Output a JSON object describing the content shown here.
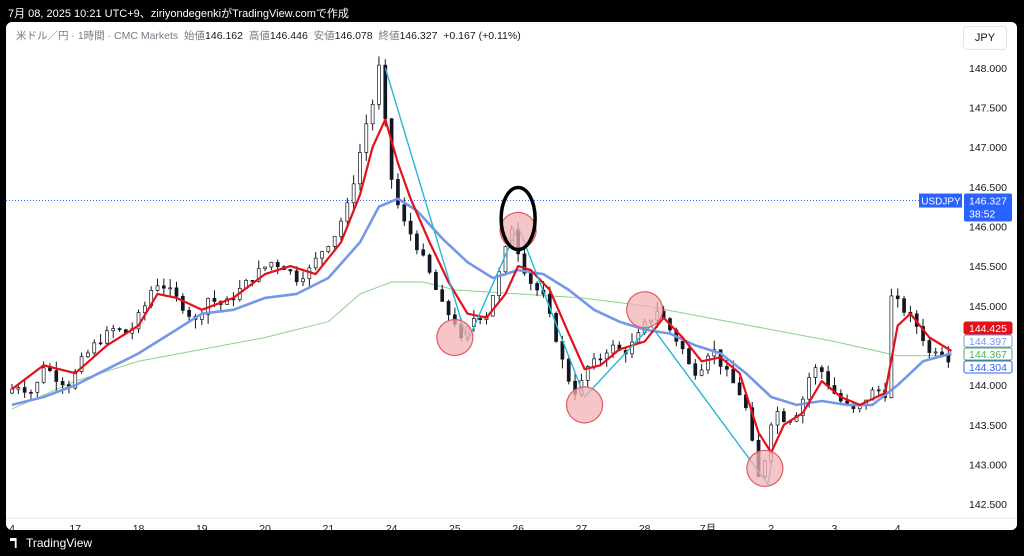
{
  "caption": "7月 08, 2025 10:21 UTC+9、ziriyondegenkiがTradingView.comで作成",
  "legend": {
    "symbol": "米ドル／円 · 1時間 · CMC Markets",
    "open_label": "始値",
    "open": "146.162",
    "high_label": "高値",
    "high": "146.446",
    "low_label": "安値",
    "low": "146.078",
    "close_label": "終値",
    "close": "146.327",
    "change": "+0.167 (+0.11%)"
  },
  "currency_button": "JPY",
  "footer_brand": "TradingView",
  "colors": {
    "up": "#089981",
    "down": "#131722",
    "candle": "#131722",
    "ma_fast": "#e4101a",
    "ma_mid": "#7597e8",
    "ma_slow": "#8fd08f",
    "zigzag": "#29b6d4",
    "circle_fill": "#f3b1b5",
    "circle_stroke": "#e05a63",
    "highlight_ring": "#000000",
    "price_line": "#2962ff"
  },
  "chart_data": {
    "type": "candlestick",
    "symbol": "USDJPY",
    "ylim": [
      142.4,
      148.2
    ],
    "y_ticks": [
      "148.000",
      "147.500",
      "147.000",
      "146.500",
      "146.000",
      "145.500",
      "145.000",
      "144.500",
      "144.000",
      "143.500",
      "143.000",
      "142.500"
    ],
    "x_ticks": [
      {
        "label": "4",
        "t": 0
      },
      {
        "label": "17",
        "t": 1
      },
      {
        "label": "18",
        "t": 2
      },
      {
        "label": "19",
        "t": 3
      },
      {
        "label": "20",
        "t": 4
      },
      {
        "label": "21",
        "t": 5
      },
      {
        "label": "24",
        "t": 6
      },
      {
        "label": "25",
        "t": 7
      },
      {
        "label": "26",
        "t": 8
      },
      {
        "label": "27",
        "t": 9
      },
      {
        "label": "28",
        "t": 10
      },
      {
        "label": "7月",
        "t": 11
      },
      {
        "label": "2",
        "t": 12
      },
      {
        "label": "3",
        "t": 13
      },
      {
        "label": "4",
        "t": 14
      }
    ],
    "close_path": [
      [
        0,
        143.9
      ],
      [
        0.2,
        144.0
      ],
      [
        0.45,
        143.9
      ],
      [
        0.6,
        144.25
      ],
      [
        0.8,
        144.1
      ],
      [
        1.0,
        144.0
      ],
      [
        1.2,
        144.3
      ],
      [
        1.45,
        144.55
      ],
      [
        1.7,
        144.7
      ],
      [
        1.95,
        144.65
      ],
      [
        2.2,
        145.0
      ],
      [
        2.35,
        145.3
      ],
      [
        2.5,
        145.25
      ],
      [
        2.75,
        145.05
      ],
      [
        3.0,
        144.8
      ],
      [
        3.2,
        145.1
      ],
      [
        3.45,
        145.0
      ],
      [
        3.7,
        145.2
      ],
      [
        3.95,
        145.4
      ],
      [
        4.2,
        145.55
      ],
      [
        4.4,
        145.5
      ],
      [
        4.6,
        145.35
      ],
      [
        4.8,
        145.45
      ],
      [
        5.0,
        145.7
      ],
      [
        5.2,
        145.9
      ],
      [
        5.4,
        146.25
      ],
      [
        5.55,
        146.75
      ],
      [
        5.7,
        147.3
      ],
      [
        5.82,
        147.6
      ],
      [
        5.9,
        148.0
      ],
      [
        6.0,
        147.3
      ],
      [
        6.1,
        146.6
      ],
      [
        6.25,
        146.1
      ],
      [
        6.45,
        145.85
      ],
      [
        6.7,
        145.4
      ],
      [
        6.9,
        145.0
      ],
      [
        7.1,
        144.8
      ],
      [
        7.2,
        144.55
      ],
      [
        7.4,
        144.85
      ],
      [
        7.6,
        144.9
      ],
      [
        7.8,
        145.4
      ],
      [
        8.0,
        146.0
      ],
      [
        8.15,
        145.55
      ],
      [
        8.3,
        145.3
      ],
      [
        8.5,
        145.1
      ],
      [
        8.7,
        144.6
      ],
      [
        8.85,
        144.15
      ],
      [
        9.05,
        143.85
      ],
      [
        9.15,
        144.2
      ],
      [
        9.35,
        144.3
      ],
      [
        9.55,
        144.5
      ],
      [
        9.75,
        144.4
      ],
      [
        9.95,
        144.55
      ],
      [
        10.1,
        144.75
      ],
      [
        10.3,
        144.95
      ],
      [
        10.5,
        144.7
      ],
      [
        10.7,
        144.45
      ],
      [
        10.85,
        144.15
      ],
      [
        11.0,
        144.25
      ],
      [
        11.15,
        144.5
      ],
      [
        11.35,
        144.2
      ],
      [
        11.6,
        143.9
      ],
      [
        11.75,
        143.6
      ],
      [
        11.85,
        142.9
      ],
      [
        11.95,
        142.75
      ],
      [
        12.05,
        143.4
      ],
      [
        12.15,
        143.7
      ],
      [
        12.35,
        143.55
      ],
      [
        12.55,
        143.7
      ],
      [
        12.7,
        144.1
      ],
      [
        12.85,
        144.25
      ],
      [
        13.05,
        143.95
      ],
      [
        13.25,
        143.75
      ],
      [
        13.45,
        143.65
      ],
      [
        13.65,
        143.9
      ],
      [
        13.85,
        143.95
      ],
      [
        13.95,
        143.85
      ],
      [
        14.0,
        145.1
      ],
      [
        14.15,
        145.0
      ],
      [
        14.3,
        144.85
      ],
      [
        14.45,
        144.7
      ],
      [
        14.6,
        144.4
      ],
      [
        14.75,
        144.5
      ],
      [
        14.85,
        144.35
      ]
    ],
    "ma_fast_path": [
      [
        0,
        143.95
      ],
      [
        0.5,
        144.25
      ],
      [
        1.0,
        144.15
      ],
      [
        1.5,
        144.5
      ],
      [
        2.0,
        144.75
      ],
      [
        2.3,
        145.15
      ],
      [
        2.6,
        145.1
      ],
      [
        3.0,
        144.95
      ],
      [
        3.5,
        145.1
      ],
      [
        4.0,
        145.4
      ],
      [
        4.4,
        145.5
      ],
      [
        4.8,
        145.4
      ],
      [
        5.2,
        145.8
      ],
      [
        5.5,
        146.4
      ],
      [
        5.7,
        147.0
      ],
      [
        5.9,
        147.35
      ],
      [
        6.1,
        146.8
      ],
      [
        6.3,
        146.35
      ],
      [
        6.6,
        145.8
      ],
      [
        6.9,
        145.3
      ],
      [
        7.2,
        144.9
      ],
      [
        7.5,
        144.85
      ],
      [
        7.8,
        145.15
      ],
      [
        8.0,
        145.5
      ],
      [
        8.2,
        145.45
      ],
      [
        8.5,
        145.2
      ],
      [
        8.8,
        144.65
      ],
      [
        9.05,
        144.2
      ],
      [
        9.3,
        144.25
      ],
      [
        9.6,
        144.45
      ],
      [
        10.0,
        144.55
      ],
      [
        10.3,
        144.85
      ],
      [
        10.6,
        144.6
      ],
      [
        10.9,
        144.3
      ],
      [
        11.2,
        144.35
      ],
      [
        11.5,
        144.15
      ],
      [
        11.8,
        143.4
      ],
      [
        12.0,
        143.15
      ],
      [
        12.2,
        143.5
      ],
      [
        12.5,
        143.65
      ],
      [
        12.8,
        144.05
      ],
      [
        13.1,
        143.85
      ],
      [
        13.4,
        143.75
      ],
      [
        13.8,
        143.9
      ],
      [
        14.0,
        144.75
      ],
      [
        14.2,
        144.9
      ],
      [
        14.5,
        144.6
      ],
      [
        14.85,
        144.43
      ]
    ],
    "ma_mid_path": [
      [
        0,
        143.75
      ],
      [
        0.5,
        143.85
      ],
      [
        1.0,
        144.0
      ],
      [
        1.5,
        144.2
      ],
      [
        2.0,
        144.4
      ],
      [
        2.5,
        144.65
      ],
      [
        3.0,
        144.9
      ],
      [
        3.5,
        144.95
      ],
      [
        4.0,
        145.1
      ],
      [
        4.5,
        145.15
      ],
      [
        5.0,
        145.35
      ],
      [
        5.5,
        145.8
      ],
      [
        5.8,
        146.25
      ],
      [
        6.1,
        146.35
      ],
      [
        6.4,
        146.2
      ],
      [
        6.8,
        145.85
      ],
      [
        7.2,
        145.55
      ],
      [
        7.6,
        145.35
      ],
      [
        8.0,
        145.45
      ],
      [
        8.4,
        145.4
      ],
      [
        8.8,
        145.2
      ],
      [
        9.2,
        144.95
      ],
      [
        9.6,
        144.8
      ],
      [
        10.0,
        144.7
      ],
      [
        10.4,
        144.65
      ],
      [
        10.8,
        144.5
      ],
      [
        11.2,
        144.4
      ],
      [
        11.6,
        144.15
      ],
      [
        12.0,
        143.85
      ],
      [
        12.4,
        143.75
      ],
      [
        12.8,
        143.8
      ],
      [
        13.2,
        143.75
      ],
      [
        13.6,
        143.75
      ],
      [
        14.0,
        144.0
      ],
      [
        14.4,
        144.3
      ],
      [
        14.85,
        144.4
      ]
    ],
    "ma_slow_path": [
      [
        0,
        143.7
      ],
      [
        1.0,
        144.05
      ],
      [
        2.0,
        144.3
      ],
      [
        3.0,
        144.45
      ],
      [
        4.0,
        144.6
      ],
      [
        5.0,
        144.8
      ],
      [
        5.5,
        145.15
      ],
      [
        6.0,
        145.3
      ],
      [
        6.5,
        145.3
      ],
      [
        7.0,
        145.2
      ],
      [
        8.0,
        145.15
      ],
      [
        9.0,
        145.1
      ],
      [
        10.0,
        145.0
      ],
      [
        11.0,
        144.85
      ],
      [
        12.0,
        144.7
      ],
      [
        13.0,
        144.55
      ],
      [
        14.0,
        144.37
      ],
      [
        14.85,
        144.37
      ]
    ],
    "zigzag": [
      [
        5.9,
        148.0
      ],
      [
        7.2,
        144.55
      ],
      [
        8.0,
        146.0
      ],
      [
        9.05,
        143.85
      ],
      [
        10.1,
        144.75
      ],
      [
        11.95,
        142.75
      ],
      [
        12.0,
        143.0
      ]
    ],
    "marked_points": [
      [
        7.0,
        144.6
      ],
      [
        9.05,
        143.75
      ],
      [
        10.0,
        144.95
      ],
      [
        11.9,
        142.95
      ],
      [
        8.0,
        145.95
      ]
    ],
    "highlight_point": [
      8.0,
      146.1
    ],
    "current_price": 146.327,
    "price_tags": [
      {
        "label": "USDJPY",
        "value": "146.327",
        "sub": "38:52",
        "color": "#2962ff",
        "y": 146.327
      },
      {
        "label": "",
        "value": "144.425",
        "color": "#e4101a",
        "y": 144.425
      },
      {
        "label": "",
        "value": "144.397",
        "color": "#7597e8",
        "y": 144.397
      },
      {
        "label": "",
        "value": "144.367",
        "color": "#4caf50",
        "y": 144.367
      },
      {
        "label": "",
        "value": "144.304",
        "color": "#2962ff",
        "y": 144.304
      }
    ],
    "grid": false
  }
}
